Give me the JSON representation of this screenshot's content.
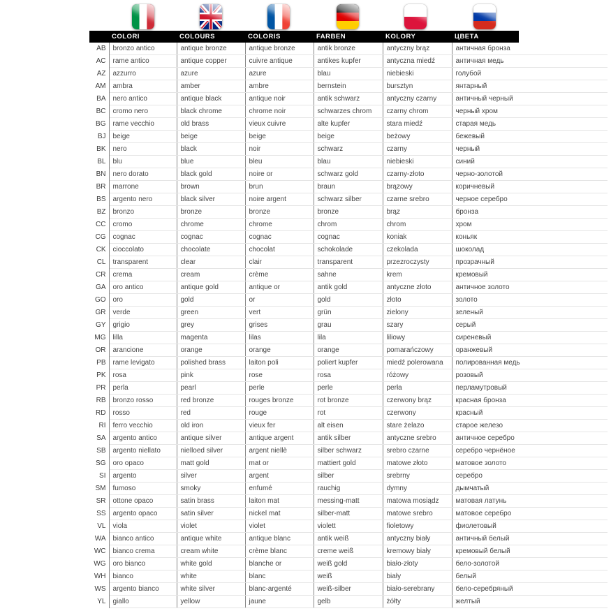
{
  "header": {
    "flags": [
      {
        "icon": "italy-flag",
        "colors": [
          "#009246",
          "#ffffff",
          "#ce2b37"
        ]
      },
      {
        "icon": "uk-flag",
        "colors": [
          "#00247d",
          "#ffffff",
          "#cf142b"
        ]
      },
      {
        "icon": "france-flag",
        "colors": [
          "#0055a4",
          "#ffffff",
          "#ef4135"
        ]
      },
      {
        "icon": "germany-flag",
        "colors": [
          "#000000",
          "#dd0000",
          "#ffce00"
        ]
      },
      {
        "icon": "poland-flag",
        "colors": [
          "#ffffff",
          "#dc143c"
        ]
      },
      {
        "icon": "russia-flag",
        "colors": [
          "#ffffff",
          "#0039a6",
          "#d52b1e"
        ]
      }
    ],
    "columns": [
      "COLORI",
      "COLOURS",
      "COLORIS",
      "FARBEN",
      "KOLORY",
      "ЦВЕТА"
    ],
    "header_bg": "#000000",
    "header_text_color": "#ffffff"
  },
  "table": {
    "column_keys": [
      "code",
      "it",
      "en",
      "fr",
      "de",
      "pl",
      "ru"
    ],
    "rows": [
      {
        "code": "AB",
        "it": "bronzo antico",
        "en": "antique bronze",
        "fr": "antique bronze",
        "de": "antik bronze",
        "pl": "antyczny brąz",
        "ru": "античная бронза"
      },
      {
        "code": "AC",
        "it": "rame antico",
        "en": "antique copper",
        "fr": "cuivre antique",
        "de": "antikes kupfer",
        "pl": "antyczna miedź",
        "ru": "античная медь"
      },
      {
        "code": "AZ",
        "it": "azzurro",
        "en": "azure",
        "fr": "azure",
        "de": "blau",
        "pl": "niebieski",
        "ru": "голубой"
      },
      {
        "code": "AM",
        "it": "ambra",
        "en": "amber",
        "fr": "ambre",
        "de": "bernstein",
        "pl": "bursztyn",
        "ru": "янтарный"
      },
      {
        "code": "BA",
        "it": "nero antico",
        "en": "antique black",
        "fr": "antique noir",
        "de": "antik schwarz",
        "pl": "antyczny czarny",
        "ru": "античный черный"
      },
      {
        "code": "BC",
        "it": "cromo nero",
        "en": "black chrome",
        "fr": "chrome noir",
        "de": "schwarzes chrom",
        "pl": "czarny chrom",
        "ru": "черный хром"
      },
      {
        "code": "BG",
        "it": "rame vecchio",
        "en": "old brass",
        "fr": "vieux cuivre",
        "de": "alte kupfer",
        "pl": "stara miedź",
        "ru": "старая медь"
      },
      {
        "code": "BJ",
        "it": "beige",
        "en": "beige",
        "fr": "beige",
        "de": "beige",
        "pl": "beżowy",
        "ru": "бежевый"
      },
      {
        "code": "BK",
        "it": "nero",
        "en": "black",
        "fr": "noir",
        "de": "schwarz",
        "pl": "czarny",
        "ru": "черный"
      },
      {
        "code": "BL",
        "it": "blu",
        "en": "blue",
        "fr": "bleu",
        "de": "blau",
        "pl": "niebieski",
        "ru": "синий"
      },
      {
        "code": "BN",
        "it": "nero dorato",
        "en": "black gold",
        "fr": "noire or",
        "de": "schwarz gold",
        "pl": "czarny-złoto",
        "ru": "черно-золотой"
      },
      {
        "code": "BR",
        "it": "marrone",
        "en": "brown",
        "fr": "brun",
        "de": "braun",
        "pl": "brązowy",
        "ru": "коричневый"
      },
      {
        "code": "BS",
        "it": "argento nero",
        "en": "black silver",
        "fr": "noire argent",
        "de": "schwarz silber",
        "pl": "czarne srebro",
        "ru": "черное серебро"
      },
      {
        "code": "BZ",
        "it": "bronzo",
        "en": "bronze",
        "fr": "bronze",
        "de": "bronze",
        "pl": "brąz",
        "ru": "бронза"
      },
      {
        "code": "CC",
        "it": "cromo",
        "en": "chrome",
        "fr": "chrome",
        "de": "chrom",
        "pl": "chrom",
        "ru": "хром"
      },
      {
        "code": "CG",
        "it": "cognac",
        "en": "cognac",
        "fr": "cognac",
        "de": "cognac",
        "pl": "koniak",
        "ru": "коньяк"
      },
      {
        "code": "CK",
        "it": "cioccolato",
        "en": "chocolate",
        "fr": "chocolat",
        "de": "schokolade",
        "pl": "czekolada",
        "ru": "шоколад"
      },
      {
        "code": "CL",
        "it": "transparent",
        "en": "clear",
        "fr": "clair",
        "de": "transparent",
        "pl": "przezroczysty",
        "ru": "прозрачный"
      },
      {
        "code": "CR",
        "it": "crema",
        "en": "cream",
        "fr": "crème",
        "de": "sahne",
        "pl": "krem",
        "ru": "кремовый"
      },
      {
        "code": "GA",
        "it": "oro antico",
        "en": "antique gold",
        "fr": "antique or",
        "de": "antik gold",
        "pl": "antyczne złoto",
        "ru": "античное золото"
      },
      {
        "code": "GO",
        "it": "oro",
        "en": "gold",
        "fr": "or",
        "de": "gold",
        "pl": "złoto",
        "ru": "золото"
      },
      {
        "code": "GR",
        "it": "verde",
        "en": "green",
        "fr": "vert",
        "de": "grün",
        "pl": "zielony",
        "ru": "зеленый"
      },
      {
        "code": "GY",
        "it": "grigio",
        "en": "grey",
        "fr": "grises",
        "de": "grau",
        "pl": "szary",
        "ru": "серый"
      },
      {
        "code": "MG",
        "it": "lilla",
        "en": "magenta",
        "fr": "lilas",
        "de": "lila",
        "pl": "liliowy",
        "ru": "сиреневый"
      },
      {
        "code": "OR",
        "it": "arancione",
        "en": "orange",
        "fr": "orange",
        "de": "orange",
        "pl": "pomarańczowy",
        "ru": "оранжевый"
      },
      {
        "code": "PB",
        "it": "rame levigato",
        "en": "polished brass",
        "fr": "laiton poli",
        "de": "poliert kupfer",
        "pl": "miedź polerowana",
        "ru": "полированная медь"
      },
      {
        "code": "PK",
        "it": "rosa",
        "en": "pink",
        "fr": "rose",
        "de": "rosa",
        "pl": "różowy",
        "ru": "розовый"
      },
      {
        "code": "PR",
        "it": "perla",
        "en": "pearl",
        "fr": "perle",
        "de": "perle",
        "pl": "perła",
        "ru": "перламутровый"
      },
      {
        "code": "RB",
        "it": "bronzo rosso",
        "en": "red bronze",
        "fr": "rouges bronze",
        "de": "rot bronze",
        "pl": "czerwony brąz",
        "ru": "красная бронза"
      },
      {
        "code": "RD",
        "it": "rosso",
        "en": "red",
        "fr": "rouge",
        "de": "rot",
        "pl": "czerwony",
        "ru": "красный"
      },
      {
        "code": "RI",
        "it": "ferro vecchio",
        "en": "old iron",
        "fr": "vieux fer",
        "de": "alt eisen",
        "pl": "stare żelazo",
        "ru": "старое железо"
      },
      {
        "code": "SA",
        "it": "argento antico",
        "en": "antique silver",
        "fr": "antique argent",
        "de": "antik silber",
        "pl": "antyczne srebro",
        "ru": "античное серебро"
      },
      {
        "code": "SB",
        "it": "argento niellato",
        "en": "nielloed silver",
        "fr": "argent niellè",
        "de": "silber schwarz",
        "pl": "srebro czarne",
        "ru": "серебро чернёное"
      },
      {
        "code": "SG",
        "it": "oro opaco",
        "en": "matt gold",
        "fr": "mat or",
        "de": "mattiert gold",
        "pl": "matowe złoto",
        "ru": "матовое золото"
      },
      {
        "code": "SI",
        "it": "argento",
        "en": "silver",
        "fr": "argent",
        "de": "silber",
        "pl": "srebrny",
        "ru": "серебро"
      },
      {
        "code": "SM",
        "it": "fumoso",
        "en": "smoky",
        "fr": "enfumé",
        "de": "rauchig",
        "pl": "dymny",
        "ru": "дымчатый"
      },
      {
        "code": "SR",
        "it": "ottone opaco",
        "en": "satin brass",
        "fr": "laiton mat",
        "de": "messing-matt",
        "pl": "matowa mosiądz",
        "ru": "матовая латунь"
      },
      {
        "code": "SS",
        "it": "argento opaco",
        "en": "satin silver",
        "fr": "nickel mat",
        "de": "silber-matt",
        "pl": "matowe srebro",
        "ru": "матовое серебро"
      },
      {
        "code": "VL",
        "it": "viola",
        "en": "violet",
        "fr": "violet",
        "de": "violett",
        "pl": "fioletowy",
        "ru": "фиолетовый"
      },
      {
        "code": "WA",
        "it": "bianco antico",
        "en": "antique white",
        "fr": "antique blanc",
        "de": "antik weiß",
        "pl": "antyczny biały",
        "ru": "античный белый"
      },
      {
        "code": "WC",
        "it": "bianco crema",
        "en": "cream white",
        "fr": "crème blanc",
        "de": "creme weiß",
        "pl": "kremowy biały",
        "ru": "кремовый белый"
      },
      {
        "code": "WG",
        "it": "oro bianco",
        "en": "white gold",
        "fr": "blanche or",
        "de": "weiß gold",
        "pl": "biało-złoty",
        "ru": "бело-золотой"
      },
      {
        "code": "WH",
        "it": "bianco",
        "en": "white",
        "fr": "blanc",
        "de": "weiß",
        "pl": "biały",
        "ru": "белый"
      },
      {
        "code": "WS",
        "it": "argento bianco",
        "en": "white silver",
        "fr": "blanc-argenté",
        "de": "weiß-silber",
        "pl": "biało-serebrany",
        "ru": "бело-серебряный"
      },
      {
        "code": "YL",
        "it": "giallo",
        "en": "yellow",
        "fr": "jaune",
        "de": "gelb",
        "pl": "żółty",
        "ru": "желтый"
      }
    ]
  }
}
